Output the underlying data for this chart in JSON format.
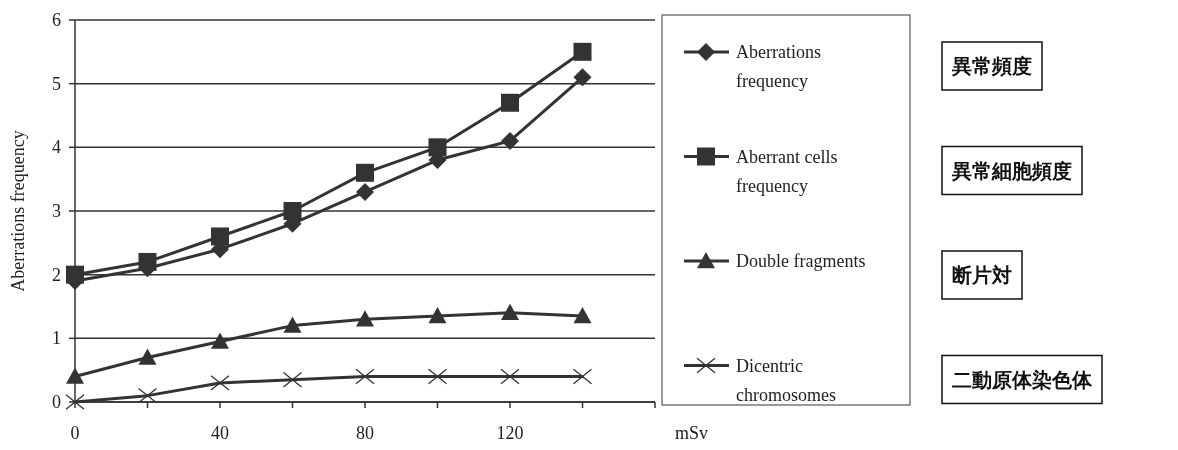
{
  "chart_data": {
    "type": "line",
    "ylabel": "Aberrations frequency",
    "xlabel": "mSv",
    "x": [
      0,
      20,
      40,
      60,
      80,
      100,
      120,
      140
    ],
    "xlim": [
      0,
      160
    ],
    "xticks": [
      0,
      {
        "value": 20,
        "label": null
      },
      40,
      {
        "value": 60,
        "label": null
      },
      80,
      {
        "value": 100,
        "label": null
      },
      120,
      {
        "value": 140,
        "label": null
      },
      {
        "value": 160,
        "label": null
      }
    ],
    "ylim": [
      0,
      6
    ],
    "yticks": [
      0,
      1,
      2,
      3,
      4,
      5,
      6
    ],
    "grid": "y",
    "legend": "right",
    "line_style": "solid",
    "series": [
      {
        "name": "Aberrations frequency",
        "color": "#333333",
        "marker": "diamond",
        "values": [
          1.9,
          2.1,
          2.4,
          2.8,
          3.3,
          3.8,
          4.1,
          5.1
        ]
      },
      {
        "name": "Aberrant cells frequency",
        "color": "#333333",
        "marker": "square",
        "values": [
          2.0,
          2.2,
          2.6,
          3.0,
          3.6,
          4.0,
          4.7,
          5.5
        ]
      },
      {
        "name": "Double fragments",
        "color": "#333333",
        "marker": "triangle",
        "values": [
          0.4,
          0.7,
          0.95,
          1.2,
          1.3,
          1.35,
          1.4,
          1.35
        ]
      },
      {
        "name": "Dicentric chromosomes",
        "color": "#333333",
        "marker": "cross",
        "values": [
          0,
          0.1,
          0.3,
          0.35,
          0.4,
          0.4,
          0.4,
          0.4
        ]
      }
    ],
    "annotations": [
      "異常頻度",
      "異常細胞頻度",
      "断片対",
      "二動原体染色体"
    ]
  }
}
